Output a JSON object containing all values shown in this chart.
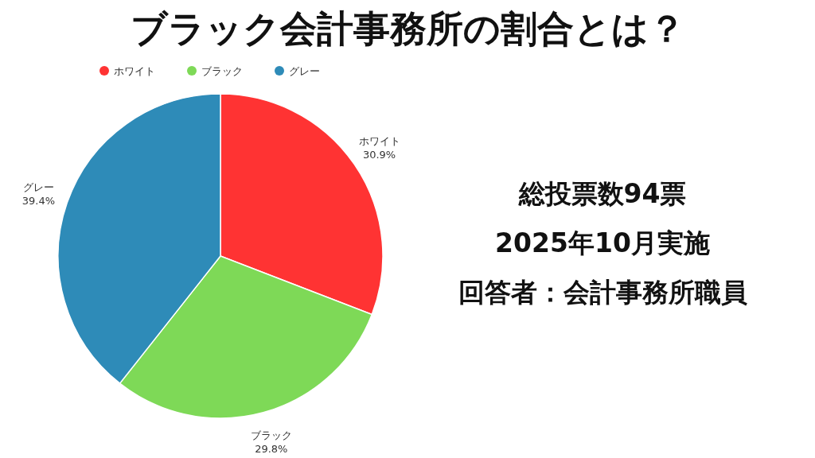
{
  "chart_data": {
    "type": "pie",
    "title": "ブラック会計事務所の割合とは？",
    "categories": [
      "ホワイト",
      "ブラック",
      "グレー"
    ],
    "values": [
      30.9,
      29.8,
      39.4
    ],
    "colors": [
      "#ff3333",
      "#7ed957",
      "#2e8bb8"
    ],
    "value_labels": [
      "30.9%",
      "29.8%",
      "39.4%"
    ],
    "legend": "top left",
    "annotations": [
      "総投票数94票",
      "2025年10月実施",
      "回答者：会計事務所職員"
    ]
  }
}
